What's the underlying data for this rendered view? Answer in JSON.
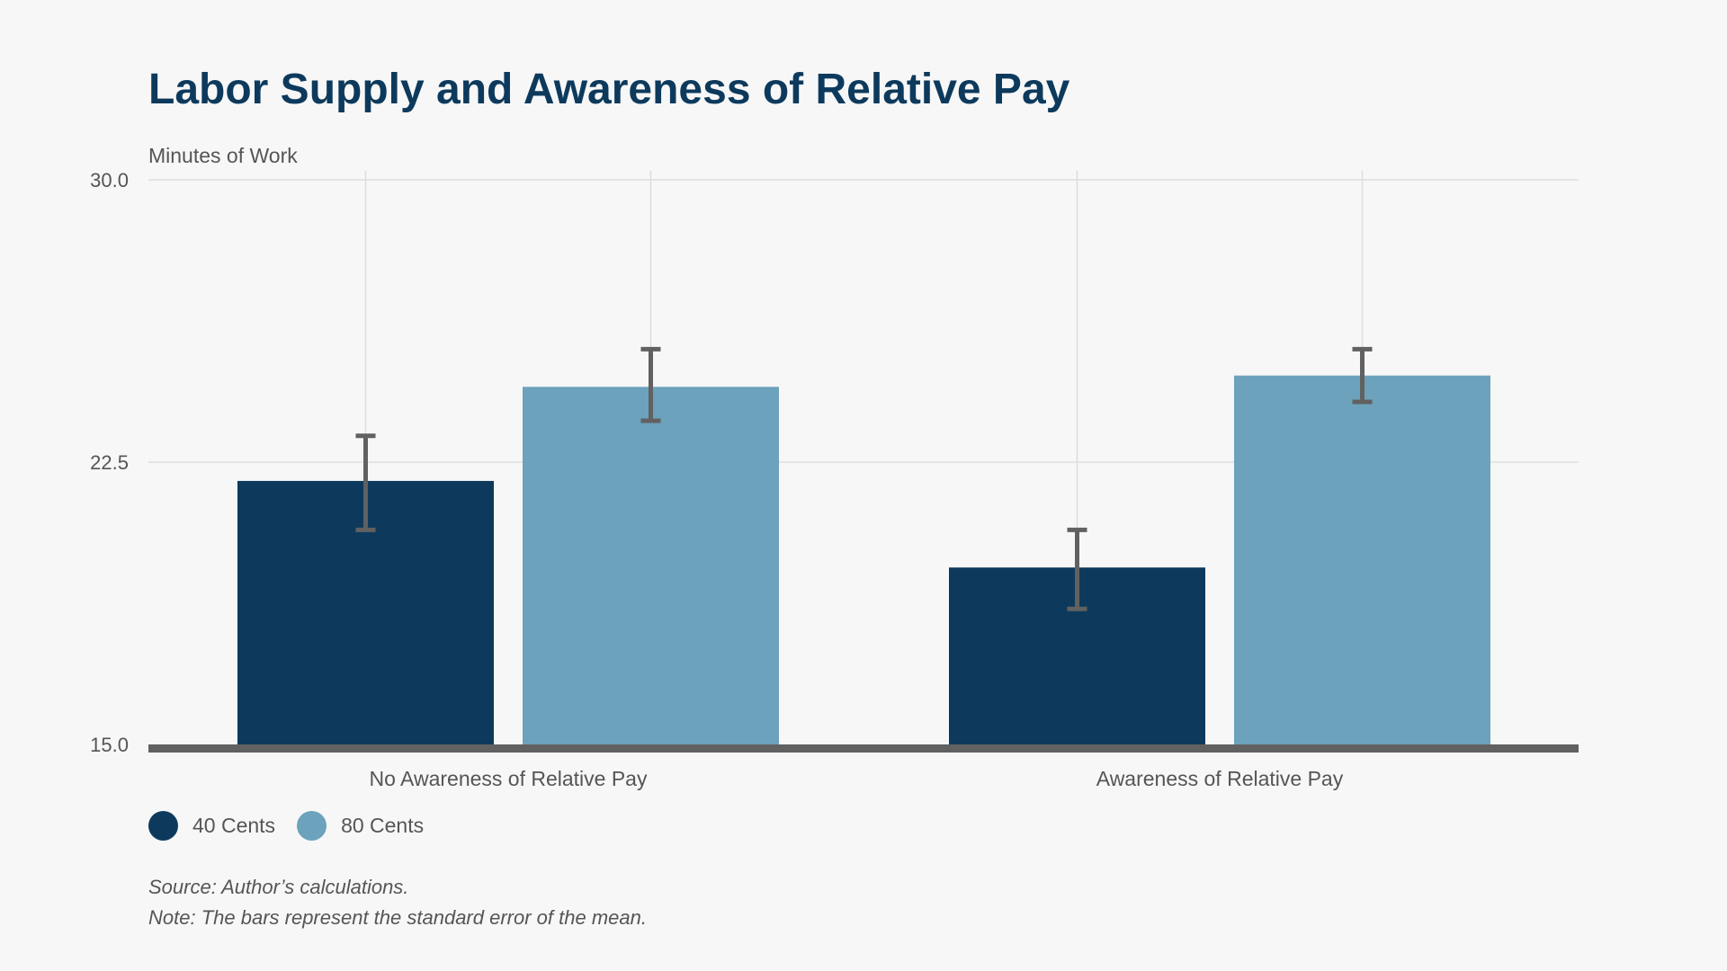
{
  "title": "Labor Supply and Awareness of Relative Pay",
  "source": "Source: Author’s calculations.",
  "note": "Note: The bars represent the standard error of the mean.",
  "colors": {
    "series_40": "#0d3a5c",
    "series_80": "#6ca2bb",
    "error_bar": "#616161",
    "baseline": "#616161",
    "gridline": "#dddddd",
    "background": "#f7f7f7"
  },
  "chart_data": {
    "type": "bar",
    "title": "Labor Supply and Awareness of Relative Pay",
    "ylabel": "Minutes of Work",
    "xlabel": "",
    "ylim": [
      15.0,
      30.0
    ],
    "yticks": [
      "15.0",
      "22.5",
      "30.0"
    ],
    "ytick_values": [
      15.0,
      22.5,
      30.0
    ],
    "grid": true,
    "legend_position": "bottom-left",
    "categories": [
      "No Awareness of Relative Pay",
      "Awareness of Relative Pay"
    ],
    "series": [
      {
        "name": "40 Cents",
        "values": [
          22.0,
          19.7
        ],
        "error_low": [
          20.7,
          18.6
        ],
        "error_high": [
          23.2,
          20.7
        ]
      },
      {
        "name": "80 Cents",
        "values": [
          24.5,
          24.8
        ],
        "error_low": [
          23.6,
          24.1
        ],
        "error_high": [
          25.5,
          25.5
        ]
      }
    ]
  }
}
